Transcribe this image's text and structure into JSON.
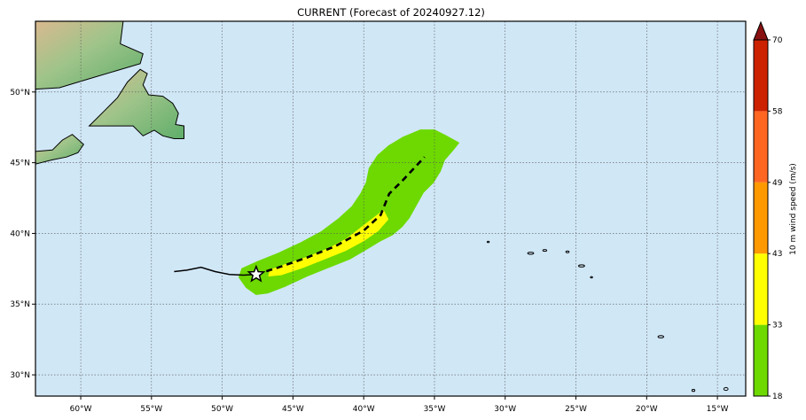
{
  "title": "CURRENT (Forecast of 20240927.12)",
  "map": {
    "lon_range": [
      -63.2,
      -13.0
    ],
    "lat_range": [
      28.5,
      55.0
    ],
    "ocean_color": "#d0e7f6",
    "grid": true,
    "lon_ticks": [
      {
        "value": -60,
        "label": "60°W"
      },
      {
        "value": -55,
        "label": "55°W"
      },
      {
        "value": -50,
        "label": "50°W"
      },
      {
        "value": -45,
        "label": "45°W"
      },
      {
        "value": -40,
        "label": "40°W"
      },
      {
        "value": -35,
        "label": "35°W"
      },
      {
        "value": -30,
        "label": "30°W"
      },
      {
        "value": -25,
        "label": "25°W"
      },
      {
        "value": -20,
        "label": "20°W"
      },
      {
        "value": -15,
        "label": "15°W"
      }
    ],
    "lat_ticks": [
      {
        "value": 50,
        "label": "50°N"
      },
      {
        "value": 45,
        "label": "45°N"
      },
      {
        "value": 40,
        "label": "40°N"
      },
      {
        "value": 35,
        "label": "35°N"
      },
      {
        "value": 30,
        "label": "30°N"
      }
    ]
  },
  "track": {
    "past": [
      [
        -53.4,
        37.3
      ],
      [
        -52.5,
        37.4
      ],
      [
        -51.5,
        37.6
      ],
      [
        -50.5,
        37.3
      ],
      [
        -49.5,
        37.1
      ],
      [
        -48.5,
        37.05
      ],
      [
        -47.6,
        37.1
      ]
    ],
    "forecast": [
      [
        -47.6,
        37.1
      ],
      [
        -46,
        37.6
      ],
      [
        -44,
        38.3
      ],
      [
        -42,
        39.1
      ],
      [
        -40,
        40.2
      ],
      [
        -38.8,
        41.3
      ],
      [
        -38.2,
        42.8
      ],
      [
        -37.2,
        43.8
      ],
      [
        -35.7,
        45.4
      ]
    ],
    "current_position": [
      -47.6,
      37.1
    ]
  },
  "wind_swath": {
    "ts_18": [
      [
        -48.6,
        37.5
      ],
      [
        -47.5,
        38.0
      ],
      [
        -46,
        38.6
      ],
      [
        -44.5,
        39.3
      ],
      [
        -43,
        40.1
      ],
      [
        -41.8,
        41.0
      ],
      [
        -40.8,
        41.9
      ],
      [
        -40.2,
        42.8
      ],
      [
        -39.8,
        43.6
      ],
      [
        -39.6,
        44.6
      ],
      [
        -39.0,
        45.5
      ],
      [
        -38.2,
        46.2
      ],
      [
        -37.2,
        46.8
      ],
      [
        -36,
        47.3
      ],
      [
        -35,
        47.3
      ],
      [
        -34.2,
        46.9
      ],
      [
        -33.3,
        46.4
      ],
      [
        -33.7,
        45.9
      ],
      [
        -34.3,
        45.2
      ],
      [
        -34.6,
        44.4
      ],
      [
        -35.1,
        43.6
      ],
      [
        -35.8,
        42.9
      ],
      [
        -36.3,
        42.0
      ],
      [
        -36.8,
        41.1
      ],
      [
        -37.3,
        40.5
      ],
      [
        -38,
        39.9
      ],
      [
        -38.8,
        39.5
      ],
      [
        -39.8,
        38.9
      ],
      [
        -41,
        38.2
      ],
      [
        -42.5,
        37.6
      ],
      [
        -44,
        37.0
      ],
      [
        -45.5,
        36.3
      ],
      [
        -46.8,
        35.8
      ],
      [
        -47.6,
        35.7
      ],
      [
        -48.3,
        36.2
      ],
      [
        -48.8,
        36.9
      ]
    ],
    "ts_33": [
      [
        -46.6,
        37.4
      ],
      [
        -45.5,
        37.8
      ],
      [
        -44,
        38.3
      ],
      [
        -42.5,
        38.9
      ],
      [
        -41.2,
        39.6
      ],
      [
        -40.3,
        40.3
      ],
      [
        -39.4,
        41.0
      ],
      [
        -38.6,
        41.6
      ],
      [
        -38.3,
        41.0
      ],
      [
        -39.0,
        40.2
      ],
      [
        -40.0,
        39.5
      ],
      [
        -41.3,
        38.8
      ],
      [
        -42.8,
        38.2
      ],
      [
        -44.3,
        37.6
      ],
      [
        -45.8,
        37.1
      ],
      [
        -46.7,
        37.0
      ]
    ]
  },
  "land": {
    "newfoundland": [
      [
        -59.4,
        47.6
      ],
      [
        -58.4,
        48.6
      ],
      [
        -57.4,
        49.6
      ],
      [
        -56.7,
        50.7
      ],
      [
        -55.8,
        51.6
      ],
      [
        -55.3,
        51.3
      ],
      [
        -55.6,
        50.5
      ],
      [
        -55.2,
        49.8
      ],
      [
        -54.2,
        49.7
      ],
      [
        -53.5,
        49.2
      ],
      [
        -53.1,
        48.5
      ],
      [
        -53.3,
        47.7
      ],
      [
        -52.7,
        47.6
      ],
      [
        -52.7,
        46.7
      ],
      [
        -53.4,
        46.7
      ],
      [
        -54.2,
        46.9
      ],
      [
        -54.8,
        47.3
      ],
      [
        -55.6,
        46.9
      ],
      [
        -56.3,
        47.6
      ],
      [
        -57.2,
        47.6
      ],
      [
        -58.4,
        47.6
      ]
    ],
    "labrador": [
      [
        -63.2,
        55.0
      ],
      [
        -57.0,
        55.0
      ],
      [
        -57.2,
        53.4
      ],
      [
        -55.6,
        52.7
      ],
      [
        -55.8,
        52.0
      ],
      [
        -57.5,
        51.5
      ],
      [
        -59.5,
        50.9
      ],
      [
        -61.5,
        50.3
      ],
      [
        -63.2,
        50.2
      ]
    ],
    "nova_scotia": [
      [
        -63.2,
        44.9
      ],
      [
        -62.0,
        45.2
      ],
      [
        -61.0,
        45.4
      ],
      [
        -60.2,
        45.7
      ],
      [
        -59.8,
        46.3
      ],
      [
        -60.6,
        47.0
      ],
      [
        -61.3,
        46.6
      ],
      [
        -62.0,
        45.9
      ],
      [
        -63.2,
        45.8
      ]
    ]
  },
  "colorbar": {
    "title": "10 m wind speed (m/s)",
    "levels": [
      18,
      33,
      43,
      49,
      58,
      70
    ],
    "labels": [
      "18",
      "33",
      "43",
      "49",
      "58",
      "70"
    ],
    "colors": [
      "#6dd900",
      "#ffff00",
      "#ff9900",
      "#ff6622",
      "#cc2200",
      "#881111"
    ]
  },
  "colors": {
    "land_green": "#7db87a",
    "land_tan": "#d5b994",
    "track": "#000000",
    "swath_outer": "#6dd900",
    "swath_inner": "#ffff00"
  }
}
